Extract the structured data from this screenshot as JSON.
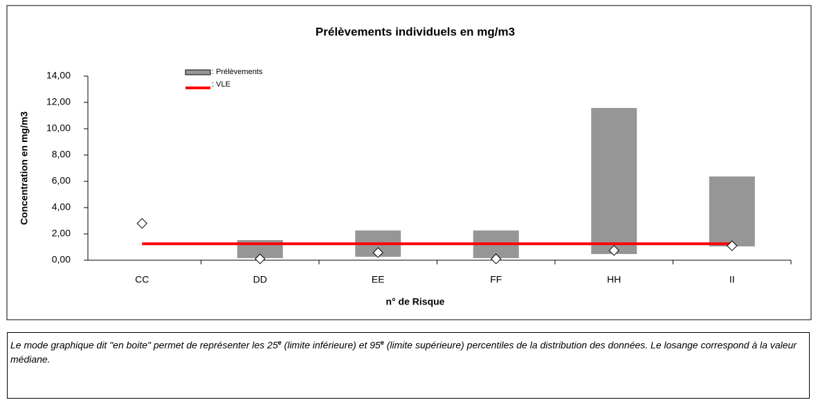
{
  "chart_data": {
    "type": "box",
    "title": "Prélèvements individuels en mg/m3",
    "x_label": "n° de Risque",
    "y_label": "Concentration en mg/m3",
    "categories": [
      "CC",
      "DD",
      "EE",
      "FF",
      "HH",
      "II"
    ],
    "series": [
      {
        "name": ": Prélèvements",
        "color": "#969696",
        "low": [
          null,
          0.16,
          0.26,
          0.16,
          0.47,
          1.05
        ],
        "high": [
          null,
          1.53,
          2.26,
          2.26,
          11.58,
          6.37
        ],
        "median": [
          2.8,
          0.1,
          0.58,
          0.1,
          0.74,
          1.1
        ]
      }
    ],
    "limit_line": {
      "name": ": VLE",
      "color": "#ff0000",
      "value": 1.25
    },
    "ylim": [
      0,
      14
    ],
    "yticks": [
      {
        "value": 0,
        "label": "0,00"
      },
      {
        "value": 2,
        "label": "2,00"
      },
      {
        "value": 4,
        "label": "4,00"
      },
      {
        "value": 6,
        "label": "6,00"
      },
      {
        "value": 8,
        "label": "8,00"
      },
      {
        "value": 10,
        "label": "10,00"
      },
      {
        "value": 12,
        "label": "12,00"
      },
      {
        "value": 14,
        "label": "14,00"
      }
    ]
  },
  "note": [
    "Le mode graphique dit \"en boite\" permet de représenter les 25",
    "e",
    " (limite inférieure) et 95",
    "e",
    " (limite supérieure) percentiles de la distribution des données. Le losange correspond à la valeur médiane."
  ]
}
